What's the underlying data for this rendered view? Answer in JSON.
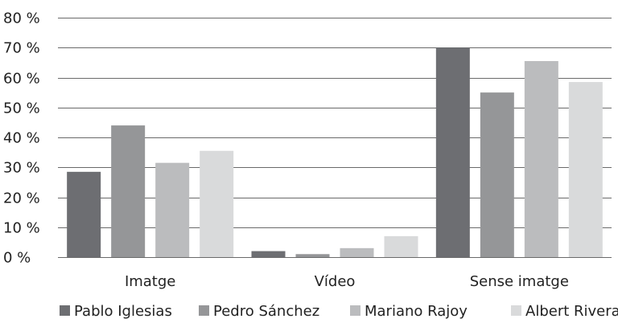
{
  "chart_data": {
    "type": "bar",
    "categories": [
      "Imatge",
      "Vídeo",
      "Sense imatge"
    ],
    "series": [
      {
        "name": "Pablo Iglesias",
        "values": [
          28.5,
          2.0,
          70.0
        ]
      },
      {
        "name": "Pedro Sánchez",
        "values": [
          44.0,
          1.0,
          55.0
        ]
      },
      {
        "name": "Mariano Rajoy",
        "values": [
          31.5,
          3.0,
          65.5
        ]
      },
      {
        "name": "Albert Rivera",
        "values": [
          35.5,
          7.0,
          58.5
        ]
      }
    ],
    "ylim": [
      0,
      80
    ],
    "yticks": [
      "0 %",
      "10 %",
      "20 %",
      "30 %",
      "40 %",
      "50 %",
      "60 %",
      "70 %",
      "80 %"
    ],
    "grid": true,
    "legend_position": "bottom",
    "colors": [
      "#6d6e72",
      "#959698",
      "#bbbcbe",
      "#d9dadb"
    ]
  }
}
